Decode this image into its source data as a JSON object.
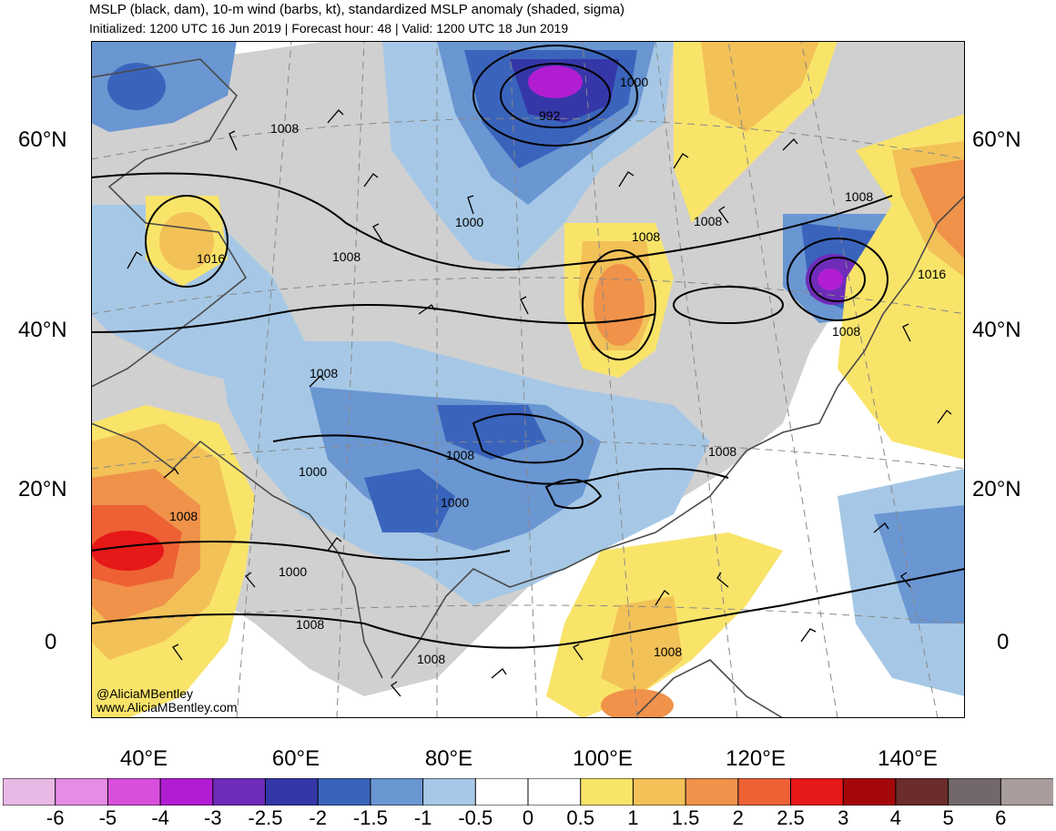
{
  "title": "MSLP (black, dam), 10-m wind (barbs, kt), standardized MSLP anomaly (shaded, sigma)",
  "subtitle": "Initialized: 1200 UTC 16 Jun 2019 | Forecast hour: 48 | Valid: 1200 UTC 18 Jun 2019",
  "credits": [
    "@AliciaMBentley",
    "www.AliciaMBentley.com"
  ],
  "lat_labels": [
    "60°N",
    "40°N",
    "20°N",
    "0"
  ],
  "lon_labels": [
    "40°E",
    "60°E",
    "80°E",
    "100°E",
    "120°E",
    "140°E"
  ],
  "contour_labels": [
    "1008",
    "1016",
    "1008",
    "1000",
    "992",
    "1000",
    "1008",
    "1008",
    "1008",
    "1008",
    "1016",
    "1008",
    "1008",
    "1008",
    "1000",
    "1000",
    "1008",
    "1000",
    "1008",
    "1008",
    "1008"
  ],
  "colorbar": {
    "labels": [
      "-6",
      "-5",
      "-4",
      "-3",
      "-2.5",
      "-2",
      "-1.5",
      "-1",
      "-0.5",
      "0",
      "0.5",
      "1",
      "1.5",
      "2",
      "2.5",
      "3",
      "4",
      "5",
      "6"
    ],
    "colors": [
      "#e9b9e6",
      "#e78ce6",
      "#d84fdc",
      "#b11ed2",
      "#6e2cb8",
      "#3537a8",
      "#3a64bc",
      "#6a96d2",
      "#a6c8e6",
      "#ffffff",
      "#ffffff",
      "#f9e46a",
      "#f2c157",
      "#f0924a",
      "#ed6135",
      "#e61818",
      "#a5080b",
      "#6c2c2c",
      "#72686a",
      "#a89c9c"
    ]
  },
  "map_colors": {
    "ocean": "#ffffff",
    "land_neutral": "#d0d0d0",
    "neg_light": "#a6c8e6",
    "neg_mid": "#6a96d2",
    "neg_strong": "#3a64bc",
    "neg_deep": "#3537a8",
    "neg_extreme": "#b11ed2",
    "pos_light": "#f9e46a",
    "pos_mid": "#f2c157",
    "pos_strong": "#f0924a",
    "pos_deep": "#ed6135",
    "pos_extreme": "#e61818"
  }
}
